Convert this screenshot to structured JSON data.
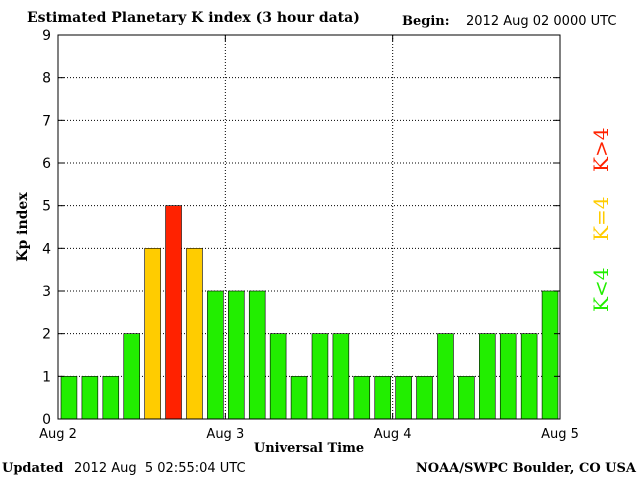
{
  "header": {
    "title": "Estimated Planetary K index (3 hour data)",
    "begin_label": "Begin:",
    "begin_value": "2012 Aug 02 0000 UTC"
  },
  "footer": {
    "updated_label": "Updated",
    "updated_value": "2012 Aug  5 02:55:04 UTC",
    "credit": "NOAA/SWPC Boulder, CO USA"
  },
  "legend": {
    "k_gt_4": {
      "label": "K>4",
      "color": "#ff2200"
    },
    "k_eq_4": {
      "label": "K=4",
      "color": "#ffcc00"
    },
    "k_lt_4": {
      "label": "K<4",
      "color": "#22ee00"
    }
  },
  "chart_data": {
    "type": "bar",
    "title": "Estimated Planetary K index (3 hour data)",
    "xlabel": "Universal Time",
    "ylabel": "Kp index",
    "ylim": [
      0,
      9
    ],
    "yticks": [
      0,
      1,
      2,
      3,
      4,
      5,
      6,
      7,
      8,
      9
    ],
    "xticks": [
      "Aug 2",
      "Aug 3",
      "Aug 4",
      "Aug 5"
    ],
    "grid": true,
    "bar_interval_hours": 3,
    "values": [
      1,
      1,
      1,
      2,
      4,
      5,
      4,
      3,
      3,
      3,
      2,
      1,
      2,
      2,
      1,
      1,
      1,
      1,
      2,
      1,
      2,
      2,
      2,
      3
    ]
  }
}
